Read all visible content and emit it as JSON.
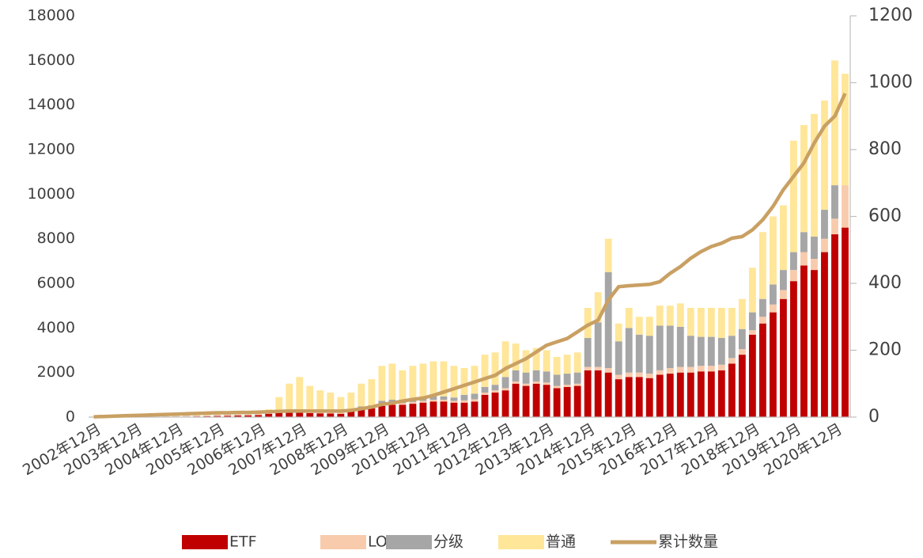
{
  "chart_data": {
    "type": "bar",
    "stacked": true,
    "grid": false,
    "legend": "bottom",
    "categories": [
      "2002年12月",
      null,
      null,
      null,
      "2003年12月",
      null,
      null,
      null,
      "2004年12月",
      null,
      null,
      null,
      "2005年12月",
      null,
      null,
      null,
      "2006年12月",
      null,
      null,
      null,
      "2007年12月",
      null,
      null,
      null,
      "2008年12月",
      null,
      null,
      null,
      "2009年12月",
      null,
      null,
      null,
      "2010年12月",
      null,
      null,
      null,
      "2011年12月",
      null,
      null,
      null,
      "2012年12月",
      null,
      null,
      null,
      "2013年12月",
      null,
      null,
      null,
      "2014年12月",
      null,
      null,
      null,
      "2015年12月",
      null,
      null,
      null,
      "2016年12月",
      null,
      null,
      null,
      "2017年12月",
      null,
      null,
      null,
      "2018年12月",
      null,
      null,
      null,
      "2019年12月",
      null,
      null,
      null,
      "2020年12月",
      null
    ],
    "ylim": [
      0,
      18000
    ],
    "yticks": [
      0,
      2000,
      4000,
      6000,
      8000,
      10000,
      12000,
      14000,
      16000,
      18000
    ],
    "y2lim": [
      0,
      1200
    ],
    "y2ticks": [
      0,
      200,
      400,
      600,
      800,
      1000,
      1200
    ],
    "series": [
      {
        "name": "ETF",
        "color": "#c00000",
        "values": [
          0,
          0,
          0,
          0,
          0,
          0,
          0,
          0,
          0,
          20,
          30,
          40,
          50,
          60,
          70,
          80,
          90,
          150,
          200,
          220,
          200,
          180,
          170,
          160,
          150,
          250,
          350,
          400,
          500,
          550,
          550,
          600,
          650,
          700,
          700,
          650,
          650,
          700,
          1000,
          1100,
          1200,
          1500,
          1400,
          1500,
          1450,
          1300,
          1350,
          1400,
          2100,
          2100,
          2000,
          1700,
          1800,
          1800,
          1750,
          1900,
          1950,
          2000,
          2000,
          2050,
          2050,
          2100,
          2400,
          2800,
          3700,
          4200,
          4700,
          5300,
          6100,
          6800,
          6600,
          7400,
          8200,
          8500
        ]
      },
      {
        "name": "LOF",
        "color": "#f8cbad",
        "values": [
          0,
          0,
          0,
          0,
          10,
          20,
          30,
          40,
          50,
          50,
          50,
          50,
          50,
          50,
          50,
          50,
          60,
          60,
          60,
          60,
          60,
          60,
          60,
          60,
          80,
          80,
          80,
          80,
          80,
          80,
          80,
          80,
          80,
          80,
          80,
          80,
          100,
          100,
          100,
          100,
          100,
          100,
          100,
          100,
          100,
          100,
          100,
          100,
          150,
          150,
          200,
          200,
          200,
          200,
          200,
          200,
          250,
          250,
          250,
          250,
          250,
          250,
          250,
          250,
          200,
          300,
          350,
          400,
          500,
          600,
          500,
          600,
          700,
          1900
        ]
      },
      {
        "name": "分级",
        "color": "#a6a6a6",
        "values": [
          0,
          0,
          0,
          0,
          0,
          0,
          0,
          0,
          0,
          0,
          0,
          0,
          10,
          10,
          10,
          10,
          20,
          20,
          20,
          20,
          30,
          30,
          30,
          30,
          40,
          40,
          50,
          50,
          150,
          150,
          150,
          150,
          150,
          150,
          150,
          150,
          250,
          250,
          250,
          250,
          500,
          500,
          500,
          500,
          500,
          500,
          500,
          500,
          1300,
          2000,
          4300,
          1500,
          2000,
          1700,
          1700,
          2000,
          1900,
          1800,
          1400,
          1300,
          1300,
          1200,
          1000,
          900,
          800,
          800,
          900,
          900,
          800,
          900,
          1000,
          1300,
          1500,
          0
        ]
      },
      {
        "name": "普通",
        "color": "#ffe699",
        "values": [
          30,
          40,
          60,
          80,
          90,
          100,
          100,
          100,
          100,
          100,
          100,
          100,
          90,
          80,
          80,
          80,
          80,
          120,
          620,
          1200,
          1510,
          1130,
          940,
          850,
          630,
          730,
          1020,
          1170,
          1570,
          1620,
          1320,
          1470,
          1520,
          1570,
          1570,
          1420,
          1200,
          1250,
          1450,
          1450,
          1600,
          1200,
          1000,
          1000,
          950,
          800,
          850,
          900,
          1350,
          1350,
          1500,
          800,
          900,
          800,
          850,
          900,
          900,
          1050,
          1250,
          1300,
          1300,
          1350,
          1250,
          1350,
          2000,
          3000,
          3050,
          2900,
          5000,
          4800,
          5500,
          4900,
          5600,
          5000
        ]
      },
      {
        "name": "累计数量",
        "color": "#c9a063",
        "type": "line",
        "axis": "y2",
        "values": [
          1,
          2,
          3,
          4,
          5,
          6,
          7,
          8,
          9,
          10,
          11,
          12,
          13,
          13,
          14,
          14,
          15,
          16,
          17,
          18,
          18,
          18,
          18,
          18,
          18,
          20,
          25,
          30,
          38,
          42,
          48,
          53,
          57,
          65,
          75,
          85,
          95,
          105,
          115,
          125,
          145,
          160,
          175,
          195,
          215,
          225,
          235,
          255,
          275,
          290,
          350,
          390,
          393,
          395,
          397,
          405,
          430,
          450,
          475,
          495,
          510,
          520,
          535,
          540,
          560,
          590,
          630,
          680,
          720,
          760,
          820,
          870,
          900,
          968
        ]
      }
    ]
  }
}
